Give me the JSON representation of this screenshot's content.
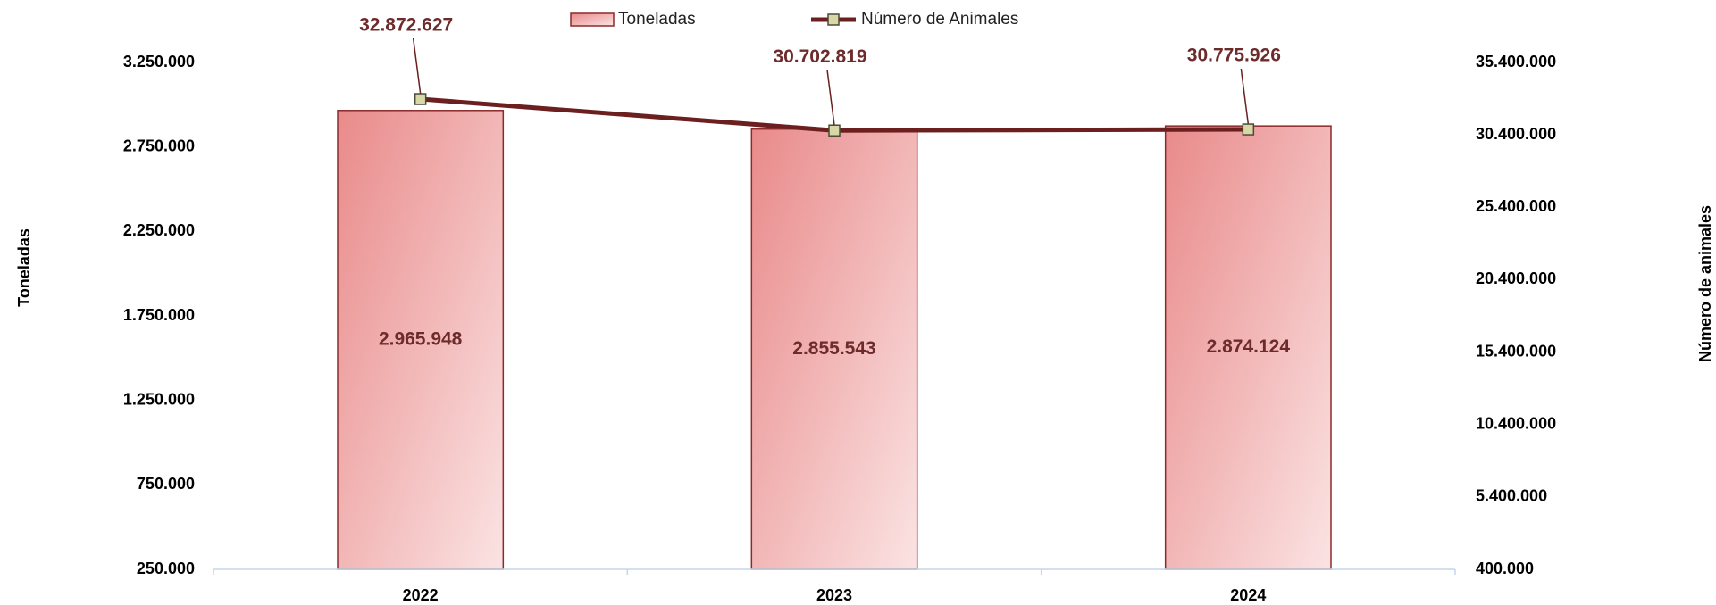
{
  "chart_data": {
    "type": "bar_line",
    "categories": [
      "2022",
      "2023",
      "2024"
    ],
    "series": [
      {
        "name": "Toneladas",
        "type": "bar",
        "color": "#e98a8a",
        "values": [
          2965948,
          2855543,
          2874124
        ],
        "value_labels": [
          "2.965.948",
          "2.855.543",
          "2.874.124"
        ]
      },
      {
        "name": "Número de Animales",
        "type": "line",
        "axis": "y2",
        "color": "#6b1f1f",
        "values": [
          32872627,
          30702819,
          30775926
        ],
        "value_labels": [
          "32.872.627",
          "30.702.819",
          "30.775.926"
        ]
      }
    ],
    "ylabel": "Toneladas",
    "y2label": "Número de animales",
    "ylim": [
      250000,
      3250000
    ],
    "yticks": [
      {
        "value": 250000,
        "label": "250.000"
      },
      {
        "value": 750000,
        "label": "750.000"
      },
      {
        "value": 1250000,
        "label": "1.250.000"
      },
      {
        "value": 1750000,
        "label": "1.750.000"
      },
      {
        "value": 2250000,
        "label": "2.250.000"
      },
      {
        "value": 2750000,
        "label": "2.750.000"
      },
      {
        "value": 3250000,
        "label": "3.250.000"
      }
    ],
    "y2lim": [
      400000,
      35400000
    ],
    "y2ticks": [
      {
        "value": 400000,
        "label": "400.000"
      },
      {
        "value": 5400000,
        "label": "5.400.000"
      },
      {
        "value": 10400000,
        "label": "10.400.000"
      },
      {
        "value": 15400000,
        "label": "15.400.000"
      },
      {
        "value": 20400000,
        "label": "20.400.000"
      },
      {
        "value": 25400000,
        "label": "25.400.000"
      },
      {
        "value": 30400000,
        "label": "30.400.000"
      },
      {
        "value": 35400000,
        "label": "35.400.000"
      }
    ],
    "legend": "top"
  }
}
